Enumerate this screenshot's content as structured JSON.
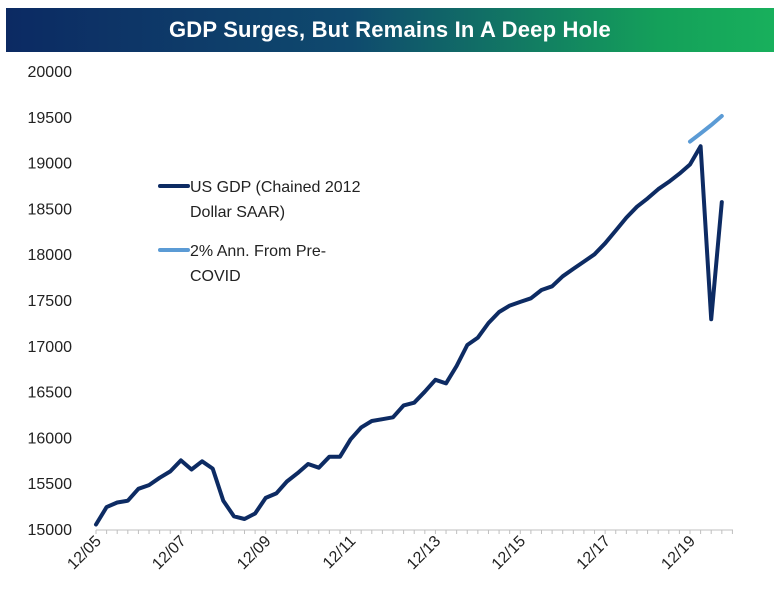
{
  "chart_data": {
    "type": "line",
    "title": "GDP Surges, But Remains In A Deep Hole",
    "xlabel": "",
    "ylabel": "",
    "ylim": [
      15000,
      20000
    ],
    "yticks": [
      "20000",
      "19500",
      "19000",
      "18500",
      "18000",
      "17500",
      "17000",
      "16500",
      "16000",
      "15500",
      "15000"
    ],
    "xticks": [
      "12/05",
      "12/07",
      "12/09",
      "12/11",
      "12/13",
      "12/15",
      "12/17",
      "12/19"
    ],
    "grid": false,
    "legend_position": "upper-left",
    "legend": [
      {
        "lines": [
          "US GDP (Chained 2012",
          "Dollar SAAR)"
        ],
        "color": "#0d2b63"
      },
      {
        "lines": [
          "2% Ann. From Pre-",
          "COVID"
        ],
        "color": "#5b9bd5"
      }
    ],
    "series": [
      {
        "name": "US GDP (Chained 2012 Dollar SAAR)",
        "color": "#0d2b63",
        "x": [
          "2005-12",
          "2006-03",
          "2006-06",
          "2006-09",
          "2006-12",
          "2007-03",
          "2007-06",
          "2007-09",
          "2007-12",
          "2008-03",
          "2008-06",
          "2008-09",
          "2008-12",
          "2009-03",
          "2009-06",
          "2009-09",
          "2009-12",
          "2010-03",
          "2010-06",
          "2010-09",
          "2010-12",
          "2011-03",
          "2011-06",
          "2011-09",
          "2011-12",
          "2012-03",
          "2012-06",
          "2012-09",
          "2012-12",
          "2013-03",
          "2013-06",
          "2013-09",
          "2013-12",
          "2014-03",
          "2014-06",
          "2014-09",
          "2014-12",
          "2015-03",
          "2015-06",
          "2015-09",
          "2015-12",
          "2016-03",
          "2016-06",
          "2016-09",
          "2016-12",
          "2017-03",
          "2017-06",
          "2017-09",
          "2017-12",
          "2018-03",
          "2018-06",
          "2018-09",
          "2018-12",
          "2019-03",
          "2019-06",
          "2019-09",
          "2019-12",
          "2020-03",
          "2020-06",
          "2020-09"
        ],
        "values": [
          15060,
          15250,
          15300,
          15320,
          15450,
          15490,
          15570,
          15640,
          15760,
          15660,
          15750,
          15670,
          15320,
          15150,
          15120,
          15180,
          15350,
          15400,
          15530,
          15620,
          15720,
          15680,
          15800,
          15800,
          15990,
          16120,
          16190,
          16210,
          16230,
          16360,
          16390,
          16510,
          16640,
          16600,
          16790,
          17020,
          17100,
          17260,
          17380,
          17450,
          17490,
          17530,
          17620,
          17660,
          17770,
          17850,
          17930,
          18010,
          18130,
          18270,
          18410,
          18530,
          18620,
          18720,
          18800,
          18890,
          18990,
          19190,
          17300,
          18580
        ]
      },
      {
        "name": "2% Ann. From Pre-COVID",
        "color": "#5b9bd5",
        "x": [
          "2019-12",
          "2020-03",
          "2020-06",
          "2020-09"
        ],
        "values": [
          19240,
          19330,
          19420,
          19520
        ]
      }
    ]
  }
}
